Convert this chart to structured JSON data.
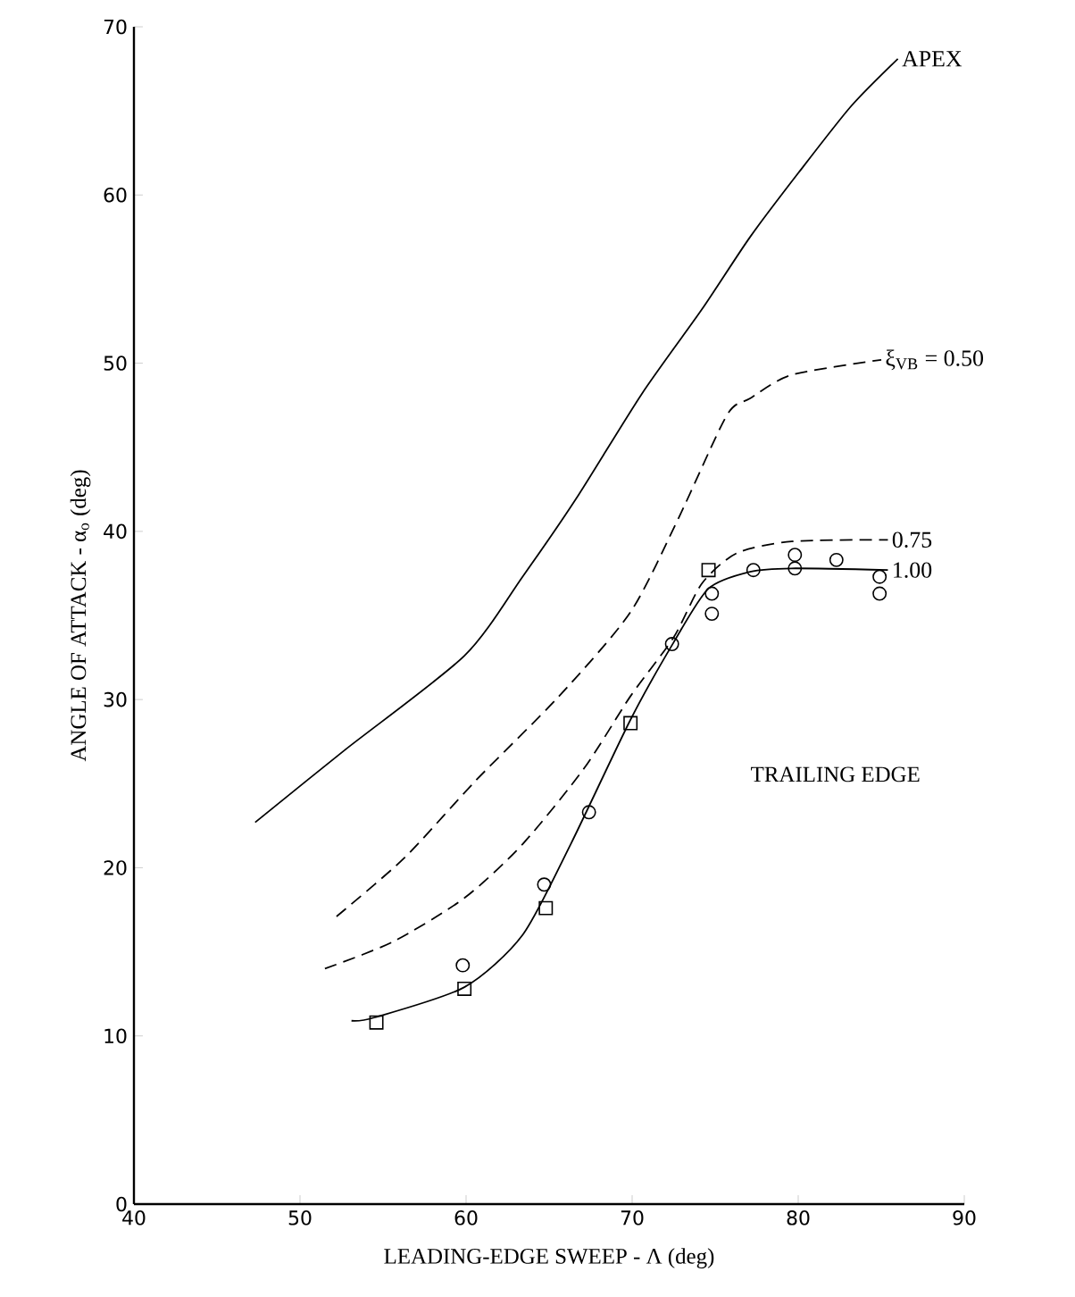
{
  "chart_data": {
    "type": "line",
    "xlabel": "LEADING-EDGE SWEEP - Λ (deg)",
    "ylabel": "ANGLE OF ATTACK - α$_{o}$ (deg)",
    "xlim": [
      40,
      90
    ],
    "ylim": [
      0,
      70
    ],
    "xticks": [
      40,
      50,
      60,
      70,
      80,
      90
    ],
    "yticks": [
      0,
      10,
      20,
      30,
      40,
      50,
      60,
      70
    ],
    "annotations": [
      "TRAILING EDGE"
    ],
    "series": [
      {
        "name": "APEX",
        "color": "#000000",
        "marker": "none",
        "line_style": "solid",
        "x": [
          47.3,
          52.7,
          59.9,
          63.4,
          66.6,
          70.6,
          74.2,
          77.1,
          80.0,
          83.2,
          86.0
        ],
        "values": [
          22.7,
          27.0,
          32.6,
          37.3,
          41.9,
          48.2,
          53.2,
          57.5,
          61.3,
          65.3,
          68.1
        ]
      },
      {
        "name": "ξ$_{VB}$ = 0.50",
        "color": "#000000",
        "marker": "none",
        "line_style": "dashed",
        "x": [
          52.2,
          56.3,
          60.6,
          65.6,
          69.9,
          72.8,
          75.7,
          77.1,
          79.6,
          85.0
        ],
        "values": [
          17.1,
          20.6,
          25.2,
          30.2,
          35.2,
          40.8,
          46.9,
          47.9,
          49.3,
          50.2
        ]
      },
      {
        "name": "0.75",
        "color": "#000000",
        "marker": "none",
        "line_style": "dashed",
        "x": [
          51.5,
          55.6,
          59.9,
          63.4,
          67.1,
          69.9,
          72.5,
          74.2,
          76.3,
          79.6,
          85.4
        ],
        "values": [
          14.0,
          15.6,
          18.2,
          21.4,
          25.9,
          30.2,
          33.7,
          36.9,
          38.7,
          39.4,
          39.5
        ]
      },
      {
        "name": "1.00",
        "color": "#000000",
        "marker": "none",
        "line_style": "solid",
        "x": [
          53.1,
          54.5,
          59.9,
          63.4,
          66.3,
          69.9,
          72.5,
          74.6,
          77.1,
          79.6,
          85.4
        ],
        "values": [
          10.9,
          11.1,
          12.9,
          16.0,
          21.4,
          28.8,
          33.4,
          36.6,
          37.6,
          37.8,
          37.7
        ]
      },
      {
        "type": "scatter",
        "color": "#000000",
        "marker": "square",
        "x": [
          54.6,
          59.9,
          64.8,
          69.9,
          74.6
        ],
        "values": [
          10.8,
          12.8,
          17.6,
          28.6,
          37.7
        ]
      },
      {
        "type": "scatter",
        "color": "#000000",
        "marker": "circle",
        "x": [
          59.8,
          64.7,
          67.4,
          72.4,
          74.8,
          77.3,
          79.8,
          82.3,
          84.9
        ],
        "values": [
          14.2,
          19.0,
          23.3,
          33.3,
          35.1,
          37.7,
          37.8,
          38.3,
          37.3
        ]
      },
      {
        "type": "scatter",
        "color": "#000000",
        "marker": "circle",
        "x": [
          74.8,
          79.8,
          84.9
        ],
        "values": [
          36.3,
          38.6,
          36.3
        ]
      }
    ]
  }
}
